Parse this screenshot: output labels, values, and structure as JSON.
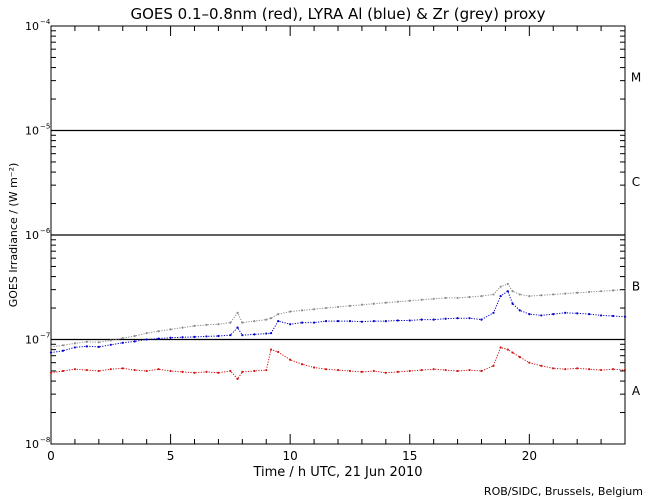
{
  "chart_data": {
    "type": "line",
    "title": "GOES 0.1–0.8nm (red), LYRA Al (blue) & Zr (grey) proxy",
    "xlabel": "Time / h UTC, 21 Jun 2010",
    "ylabel": "GOES Irradiance / (W m⁻²)",
    "credit": "ROB/SIDC, Brussels, Belgium",
    "xlim": [
      0,
      24
    ],
    "ylim": [
      1e-08,
      0.0001
    ],
    "yscale": "log",
    "xticks": [
      0,
      5,
      10,
      15,
      20
    ],
    "yticks": [
      {
        "value": 1e-08,
        "label": "10",
        "exp": "−8"
      },
      {
        "value": 1e-07,
        "label": "10",
        "exp": "−7"
      },
      {
        "value": 1e-06,
        "label": "10",
        "exp": "−6"
      },
      {
        "value": 1e-05,
        "label": "10",
        "exp": "−5"
      },
      {
        "value": 0.0001,
        "label": "10",
        "exp": "−4"
      }
    ],
    "flare_classes": [
      {
        "label": "A",
        "value": 3.2e-08
      },
      {
        "label": "B",
        "value": 3.2e-07
      },
      {
        "label": "C",
        "value": 3.2e-06
      },
      {
        "label": "M",
        "value": 3.2e-05
      }
    ],
    "thresholds": [
      1e-07,
      1e-06,
      1e-05
    ],
    "series": [
      {
        "name": "Zr (grey)",
        "color": "#8c8c8c",
        "x": [
          0,
          0.5,
          1,
          1.5,
          2,
          2.5,
          3,
          3.5,
          4,
          4.5,
          5,
          5.5,
          6,
          6.5,
          7,
          7.5,
          7.8,
          8,
          8.5,
          9,
          9.2,
          9.5,
          10,
          10.5,
          11,
          11.5,
          12,
          12.5,
          13,
          13.5,
          14,
          14.5,
          15,
          15.5,
          16,
          16.5,
          17,
          17.5,
          18,
          18.5,
          18.8,
          19.1,
          19.3,
          19.6,
          20,
          20.5,
          21,
          21.5,
          22,
          22.5,
          23,
          23.5,
          24
        ],
        "y": [
          8.5e-08,
          8.8e-08,
          9.2e-08,
          9.5e-08,
          9.4e-08,
          9.8e-08,
          1.03e-07,
          1.08e-07,
          1.15e-07,
          1.2e-07,
          1.25e-07,
          1.3e-07,
          1.35e-07,
          1.38e-07,
          1.4e-07,
          1.45e-07,
          1.8e-07,
          1.45e-07,
          1.5e-07,
          1.55e-07,
          1.6e-07,
          1.75e-07,
          1.85e-07,
          1.9e-07,
          1.95e-07,
          2e-07,
          2.05e-07,
          2.1e-07,
          2.15e-07,
          2.2e-07,
          2.25e-07,
          2.3e-07,
          2.35e-07,
          2.4e-07,
          2.45e-07,
          2.5e-07,
          2.5e-07,
          2.55e-07,
          2.6e-07,
          2.7e-07,
          3.2e-07,
          3.4e-07,
          2.9e-07,
          2.7e-07,
          2.6e-07,
          2.65e-07,
          2.7e-07,
          2.75e-07,
          2.8e-07,
          2.85e-07,
          2.9e-07,
          2.95e-07,
          3e-07
        ]
      },
      {
        "name": "Al (blue)",
        "color": "#0000c8",
        "x": [
          0,
          0.5,
          1,
          1.5,
          2,
          2.5,
          3,
          3.5,
          4,
          4.5,
          5,
          5.5,
          6,
          6.5,
          7,
          7.5,
          7.8,
          8,
          8.5,
          9,
          9.2,
          9.5,
          10,
          10.5,
          11,
          11.5,
          12,
          12.5,
          13,
          13.5,
          14,
          14.5,
          15,
          15.5,
          16,
          16.5,
          17,
          17.5,
          18,
          18.5,
          18.8,
          19.1,
          19.3,
          19.6,
          20,
          20.5,
          21,
          21.5,
          22,
          22.5,
          23,
          23.5,
          24
        ],
        "y": [
          7.5e-08,
          7.8e-08,
          8.4e-08,
          8.6e-08,
          8.5e-08,
          8.9e-08,
          9.3e-08,
          9.6e-08,
          1e-07,
          1.02e-07,
          1.04e-07,
          1.05e-07,
          1.06e-07,
          1.07e-07,
          1.08e-07,
          1.1e-07,
          1.3e-07,
          1.1e-07,
          1.12e-07,
          1.14e-07,
          1.15e-07,
          1.5e-07,
          1.4e-07,
          1.45e-07,
          1.45e-07,
          1.5e-07,
          1.5e-07,
          1.5e-07,
          1.48e-07,
          1.5e-07,
          1.5e-07,
          1.52e-07,
          1.52e-07,
          1.55e-07,
          1.55e-07,
          1.58e-07,
          1.6e-07,
          1.6e-07,
          1.55e-07,
          1.8e-07,
          2.6e-07,
          2.9e-07,
          2.2e-07,
          1.9e-07,
          1.75e-07,
          1.7e-07,
          1.75e-07,
          1.8e-07,
          1.78e-07,
          1.75e-07,
          1.7e-07,
          1.68e-07,
          1.65e-07
        ]
      },
      {
        "name": "GOES 0.1–0.8nm (red)",
        "color": "#d21414",
        "x": [
          0,
          0.5,
          1,
          1.5,
          2,
          2.5,
          3,
          3.5,
          4,
          4.5,
          5,
          5.5,
          6,
          6.5,
          7,
          7.5,
          7.8,
          8,
          8.5,
          9,
          9.2,
          9.5,
          10,
          10.5,
          11,
          11.5,
          12,
          12.5,
          13,
          13.5,
          14,
          14.5,
          15,
          15.5,
          16,
          16.5,
          17,
          17.5,
          18,
          18.5,
          18.8,
          19.1,
          19.3,
          19.6,
          20,
          20.5,
          21,
          21.5,
          22,
          22.5,
          23,
          23.5,
          24
        ],
        "y": [
          4.8e-08,
          5e-08,
          5.2e-08,
          5.1e-08,
          5e-08,
          5.2e-08,
          5.3e-08,
          5.1e-08,
          5e-08,
          5.2e-08,
          5e-08,
          4.9e-08,
          4.8e-08,
          4.9e-08,
          4.8e-08,
          5e-08,
          4.2e-08,
          4.9e-08,
          5e-08,
          5.1e-08,
          8e-08,
          7.6e-08,
          6.4e-08,
          5.8e-08,
          5.4e-08,
          5.2e-08,
          5.1e-08,
          5e-08,
          4.9e-08,
          5e-08,
          4.8e-08,
          4.9e-08,
          5e-08,
          5.1e-08,
          5.2e-08,
          5.1e-08,
          5e-08,
          5.1e-08,
          5e-08,
          5.6e-08,
          8.4e-08,
          8e-08,
          7.5e-08,
          6.8e-08,
          6e-08,
          5.6e-08,
          5.3e-08,
          5.2e-08,
          5.3e-08,
          5.2e-08,
          5.1e-08,
          5.2e-08,
          5.1e-08
        ]
      }
    ]
  }
}
